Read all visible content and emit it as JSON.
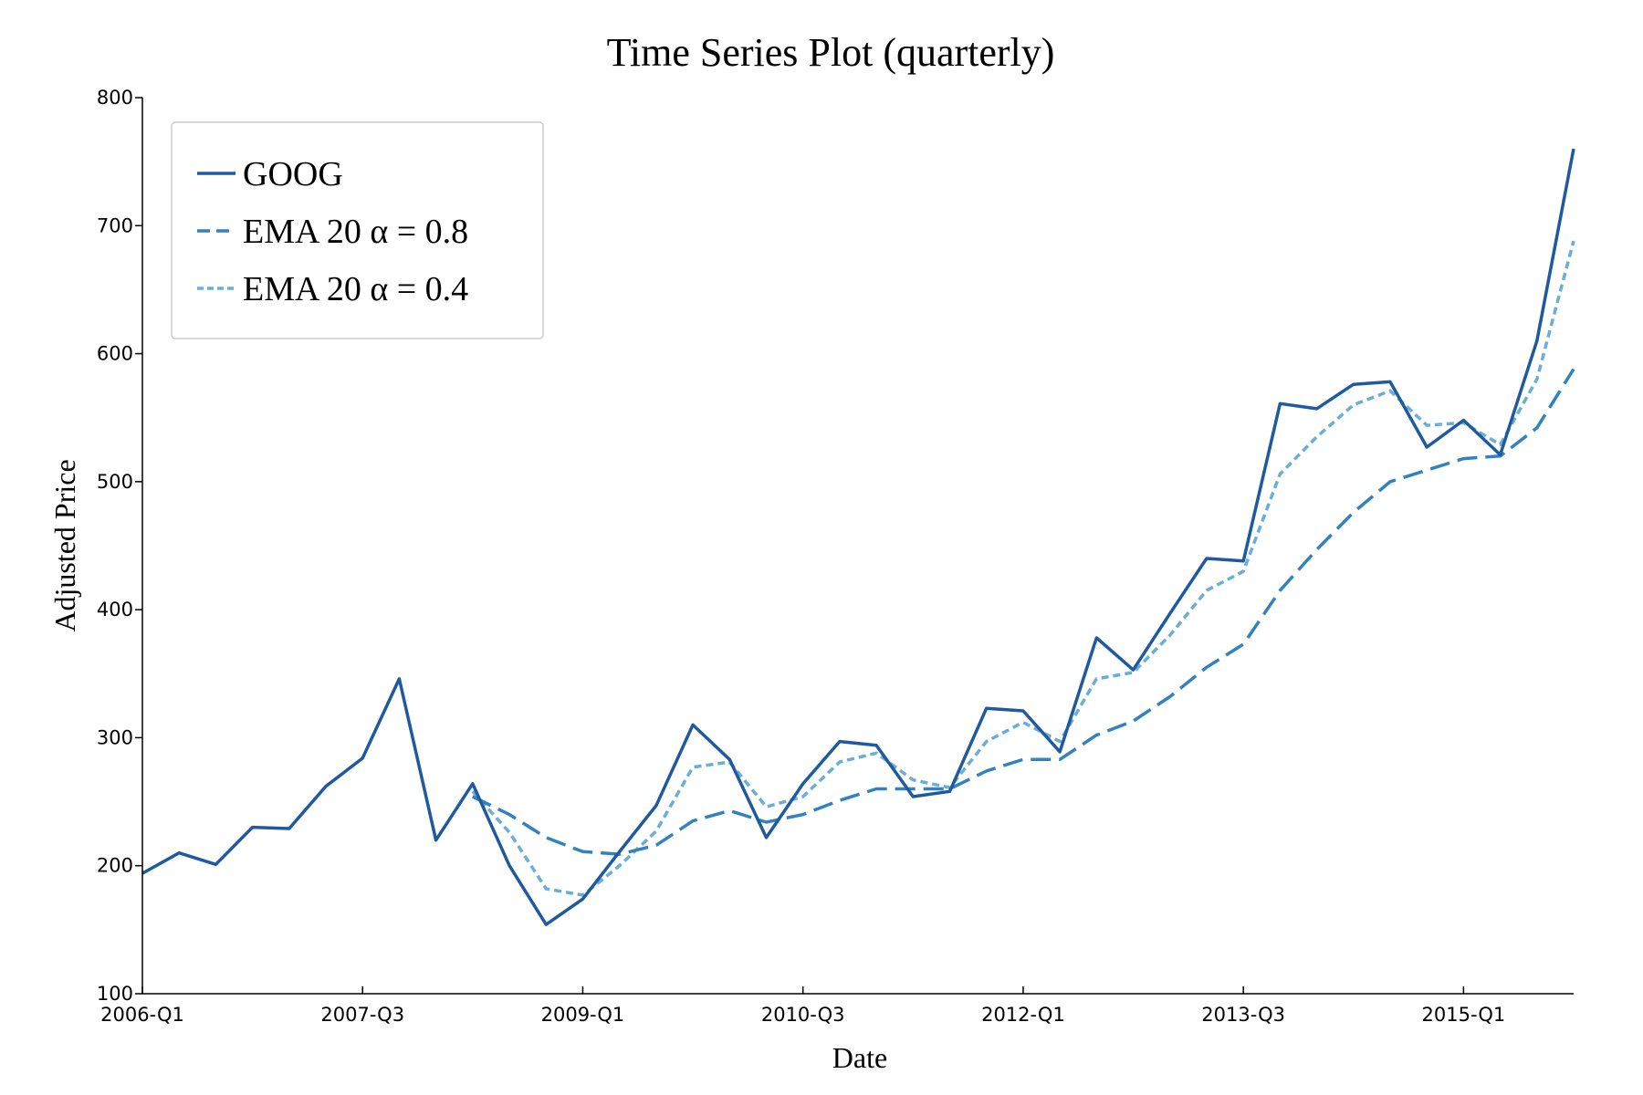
{
  "chart_data": {
    "type": "line",
    "title": "Time Series Plot (quarterly)",
    "xlabel": "Date",
    "ylabel": "Adjusted Price",
    "ylim": [
      100,
      800
    ],
    "yticks": [
      100,
      200,
      300,
      400,
      500,
      600,
      700,
      800
    ],
    "xticks": [
      "2006-Q1",
      "2007-Q3",
      "2009-Q1",
      "2010-Q3",
      "2012-Q1",
      "2013-Q3",
      "2015-Q1"
    ],
    "x": [
      "2006-Q1",
      "2006-Q2",
      "2006-Q3",
      "2006-Q4",
      "2007-Q1",
      "2007-Q2",
      "2007-Q3",
      "2007-Q4",
      "2008-Q1",
      "2008-Q2",
      "2008-Q3",
      "2008-Q4",
      "2009-Q1",
      "2009-Q2",
      "2009-Q3",
      "2009-Q4",
      "2010-Q1",
      "2010-Q2",
      "2010-Q3",
      "2010-Q4",
      "2011-Q1",
      "2011-Q2",
      "2011-Q3",
      "2011-Q4",
      "2012-Q1",
      "2012-Q2",
      "2012-Q3",
      "2012-Q4",
      "2013-Q1",
      "2013-Q2",
      "2013-Q3",
      "2013-Q4",
      "2014-Q1",
      "2014-Q2",
      "2014-Q3",
      "2014-Q4",
      "2015-Q1",
      "2015-Q2",
      "2015-Q3",
      "2015-Q4"
    ],
    "grid": false,
    "legend_position": "top-left",
    "series": [
      {
        "name": "GOOG",
        "style": "solid",
        "color": "#1f5aa0",
        "values": [
          194,
          210,
          201,
          230,
          229,
          262,
          284,
          346,
          220,
          264,
          200,
          154,
          174,
          211,
          247,
          310,
          283,
          222,
          264,
          297,
          294,
          254,
          258,
          323,
          321,
          289,
          378,
          353,
          397,
          440,
          438,
          561,
          557,
          576,
          578,
          527,
          548,
          521,
          610,
          760
        ]
      },
      {
        "name": "EMA 20 α = 0.8",
        "style": "dashed",
        "color": "#3282c0",
        "values": [
          null,
          null,
          null,
          null,
          null,
          null,
          null,
          null,
          null,
          254,
          240,
          222,
          211,
          209,
          216,
          235,
          243,
          234,
          240,
          251,
          260,
          260,
          260,
          274,
          283,
          283,
          302,
          313,
          332,
          355,
          373,
          415,
          447,
          476,
          500,
          509,
          518,
          520,
          542,
          588
        ]
      },
      {
        "name": "EMA 20 α = 0.4",
        "style": "dotted",
        "color": "#6aaed8",
        "values": [
          null,
          null,
          null,
          null,
          null,
          null,
          null,
          null,
          null,
          258,
          226,
          182,
          177,
          200,
          227,
          277,
          281,
          246,
          254,
          281,
          288,
          267,
          261,
          297,
          312,
          297,
          346,
          351,
          380,
          415,
          430,
          506,
          535,
          560,
          571,
          544,
          546,
          529,
          580,
          688
        ]
      }
    ]
  }
}
